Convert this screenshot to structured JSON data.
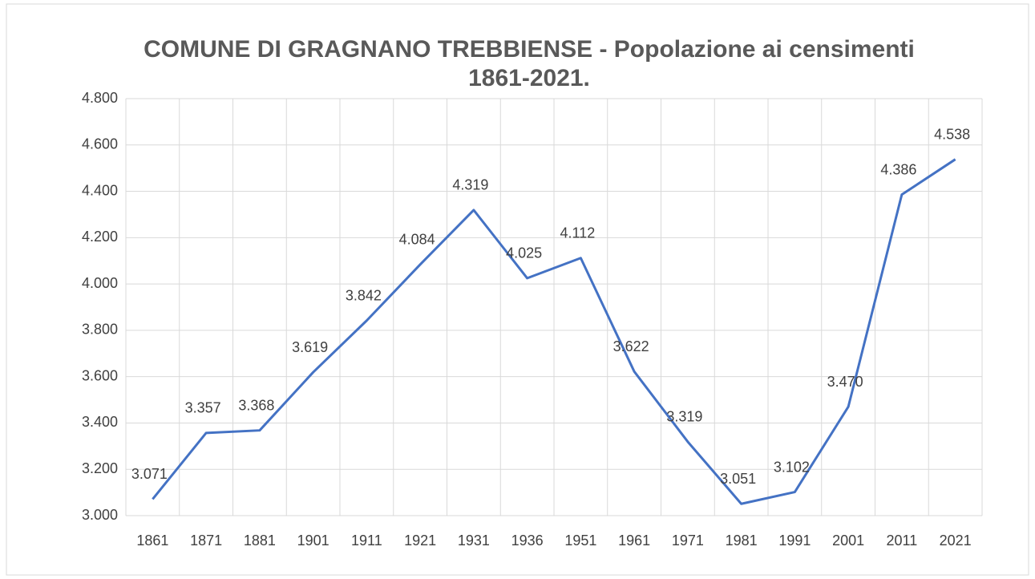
{
  "chart_data": {
    "type": "line",
    "title": "COMUNE DI GRAGNANO TREBBIENSE - Popolazione ai censimenti 1861-2021.",
    "categories": [
      "1861",
      "1871",
      "1881",
      "1901",
      "1911",
      "1921",
      "1931",
      "1936",
      "1951",
      "1961",
      "1971",
      "1981",
      "1991",
      "2001",
      "2011",
      "2021"
    ],
    "series": [
      {
        "name": "Popolazione",
        "color": "#4472c4",
        "values": [
          3071,
          3357,
          3368,
          3619,
          3842,
          4084,
          4319,
          4025,
          4112,
          3622,
          3319,
          3051,
          3102,
          3470,
          4386,
          4538
        ],
        "value_labels": [
          "3.071",
          "3.357",
          "3.368",
          "3.619",
          "3.842",
          "4.084",
          "4.319",
          "4.025",
          "4.112",
          "3.622",
          "3.319",
          "3.051",
          "3.102",
          "3.470",
          "4.386",
          "4.538"
        ]
      }
    ],
    "ylim": [
      3000,
      4800
    ],
    "yticks": [
      {
        "value": 3000,
        "label": "3.000"
      },
      {
        "value": 3200,
        "label": "3.200"
      },
      {
        "value": 3400,
        "label": "3.400"
      },
      {
        "value": 3600,
        "label": "3.600"
      },
      {
        "value": 3800,
        "label": "3.800"
      },
      {
        "value": 4000,
        "label": "4.000"
      },
      {
        "value": 4200,
        "label": "4.200"
      },
      {
        "value": 4400,
        "label": "4.400"
      },
      {
        "value": 4600,
        "label": "4.600"
      },
      {
        "value": 4800,
        "label": "4.800"
      }
    ],
    "grid": true
  }
}
